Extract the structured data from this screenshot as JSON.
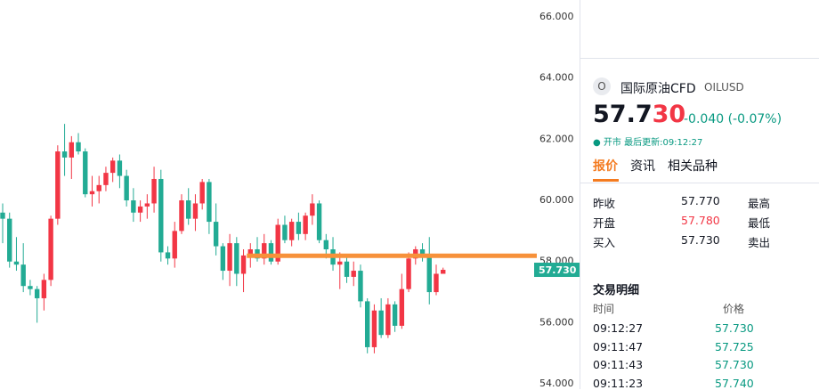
{
  "chart_data": {
    "type": "candlestick",
    "open": [
      59.6,
      59.4,
      58.0,
      57.9,
      57.2,
      57.1,
      56.8,
      57.4,
      59.4,
      61.6,
      61.4,
      61.9,
      61.6,
      60.2,
      60.3,
      60.5,
      60.9,
      61.3,
      60.8,
      60.0,
      59.6,
      59.8,
      59.9,
      60.7,
      58.3,
      58.1,
      59.0,
      60.0,
      59.4,
      59.9,
      60.6,
      59.3,
      58.5,
      57.7,
      58.6,
      57.6,
      58.2,
      58.4,
      58.1,
      58.6,
      58.0,
      59.2,
      58.7,
      59.3,
      58.9,
      59.5,
      59.9,
      58.7,
      58.4,
      57.9,
      58.0,
      57.5,
      57.7,
      56.7,
      55.2,
      56.4,
      55.6,
      56.6,
      55.9,
      57.1,
      58.1,
      58.4,
      58.2,
      57.0,
      57.6
    ],
    "high": [
      59.9,
      59.6,
      58.8,
      58.6,
      57.4,
      57.2,
      57.6,
      59.5,
      61.8,
      62.5,
      62.1,
      62.2,
      61.7,
      60.8,
      60.8,
      61.1,
      61.4,
      61.5,
      61.0,
      60.4,
      60.0,
      60.2,
      61.1,
      61.0,
      58.5,
      59.3,
      60.2,
      60.4,
      60.2,
      60.7,
      60.7,
      59.9,
      58.6,
      58.9,
      58.8,
      58.4,
      58.6,
      58.8,
      58.9,
      58.7,
      59.4,
      59.5,
      59.4,
      59.6,
      59.6,
      60.2,
      60.0,
      58.9,
      58.8,
      58.3,
      58.2,
      58.0,
      57.9,
      56.8,
      56.6,
      56.8,
      56.8,
      56.7,
      57.6,
      58.3,
      58.5,
      58.6,
      58.8,
      57.9,
      57.8
    ],
    "low": [
      58.6,
      57.8,
      57.7,
      57.0,
      56.9,
      56.0,
      56.4,
      57.2,
      59.2,
      60.8,
      60.7,
      61.5,
      60.1,
      59.8,
      59.9,
      60.3,
      60.6,
      60.4,
      59.8,
      59.3,
      59.3,
      59.4,
      59.6,
      58.0,
      57.9,
      57.8,
      58.9,
      59.2,
      59.0,
      59.7,
      58.9,
      58.2,
      57.4,
      57.2,
      57.2,
      57.0,
      57.8,
      58.0,
      57.9,
      57.9,
      57.9,
      58.6,
      58.5,
      58.7,
      58.7,
      59.2,
      58.6,
      58.1,
      57.7,
      57.1,
      57.3,
      57.2,
      56.5,
      55.0,
      55.0,
      55.5,
      55.5,
      55.7,
      55.8,
      57.0,
      57.9,
      58.0,
      56.6,
      56.9,
      57.7
    ],
    "close": [
      59.4,
      58.0,
      57.9,
      57.2,
      57.1,
      56.8,
      57.4,
      59.4,
      61.6,
      61.4,
      61.9,
      61.6,
      60.2,
      60.3,
      60.5,
      60.9,
      61.3,
      60.8,
      60.0,
      59.6,
      59.8,
      59.9,
      60.7,
      58.3,
      58.1,
      59.0,
      60.0,
      59.4,
      59.9,
      60.6,
      59.3,
      58.5,
      57.7,
      58.6,
      57.6,
      58.2,
      58.4,
      58.1,
      58.6,
      58.0,
      59.2,
      58.7,
      59.3,
      58.9,
      59.5,
      59.9,
      58.7,
      58.4,
      57.9,
      58.0,
      57.5,
      57.7,
      56.7,
      55.2,
      56.4,
      55.6,
      56.6,
      55.9,
      57.1,
      58.1,
      58.4,
      58.2,
      57.0,
      57.6,
      57.73
    ],
    "rise_color": "#f23645",
    "fall_color": "#22ab94",
    "ylim": [
      53.83,
      66.55
    ],
    "yticks": [
      {
        "value": 66,
        "label": "66.000"
      },
      {
        "value": 64,
        "label": "64.000"
      },
      {
        "value": 62,
        "label": "62.000"
      },
      {
        "value": 60,
        "label": "60.000"
      },
      {
        "value": 58,
        "label": "58.000"
      },
      {
        "value": 56,
        "label": "56.000"
      },
      {
        "value": 54,
        "label": "54.000"
      }
    ],
    "grid": false,
    "last_price": {
      "value": 57.73,
      "label": "57.730",
      "color": "#22ab94"
    },
    "level_line": {
      "value": 58.19,
      "color": "#f7913a"
    }
  },
  "quote": {
    "icon": "O",
    "name": "国际原油CFD",
    "symbol": "OILUSD",
    "price_main": "57.7",
    "price_tail": "30",
    "change": "-0.040",
    "change_pct": "(-0.07%)",
    "status": "● 开市",
    "updated": "最后更新:09:12:27",
    "tabs": [
      "报价",
      "资讯",
      "相关品种"
    ],
    "stats": [
      [
        "昨收",
        "57.770",
        "最高"
      ],
      [
        "开盘",
        "57.780",
        "最低"
      ],
      [
        "买入",
        "57.730",
        "卖出"
      ]
    ]
  },
  "trades": {
    "title": "交易明细",
    "headers": [
      "时间",
      "价格"
    ],
    "rows": [
      [
        "09:12:27",
        "57.730"
      ],
      [
        "09:11:47",
        "57.725"
      ],
      [
        "09:11:43",
        "57.730"
      ],
      [
        "09:11:23",
        "57.740"
      ]
    ]
  }
}
